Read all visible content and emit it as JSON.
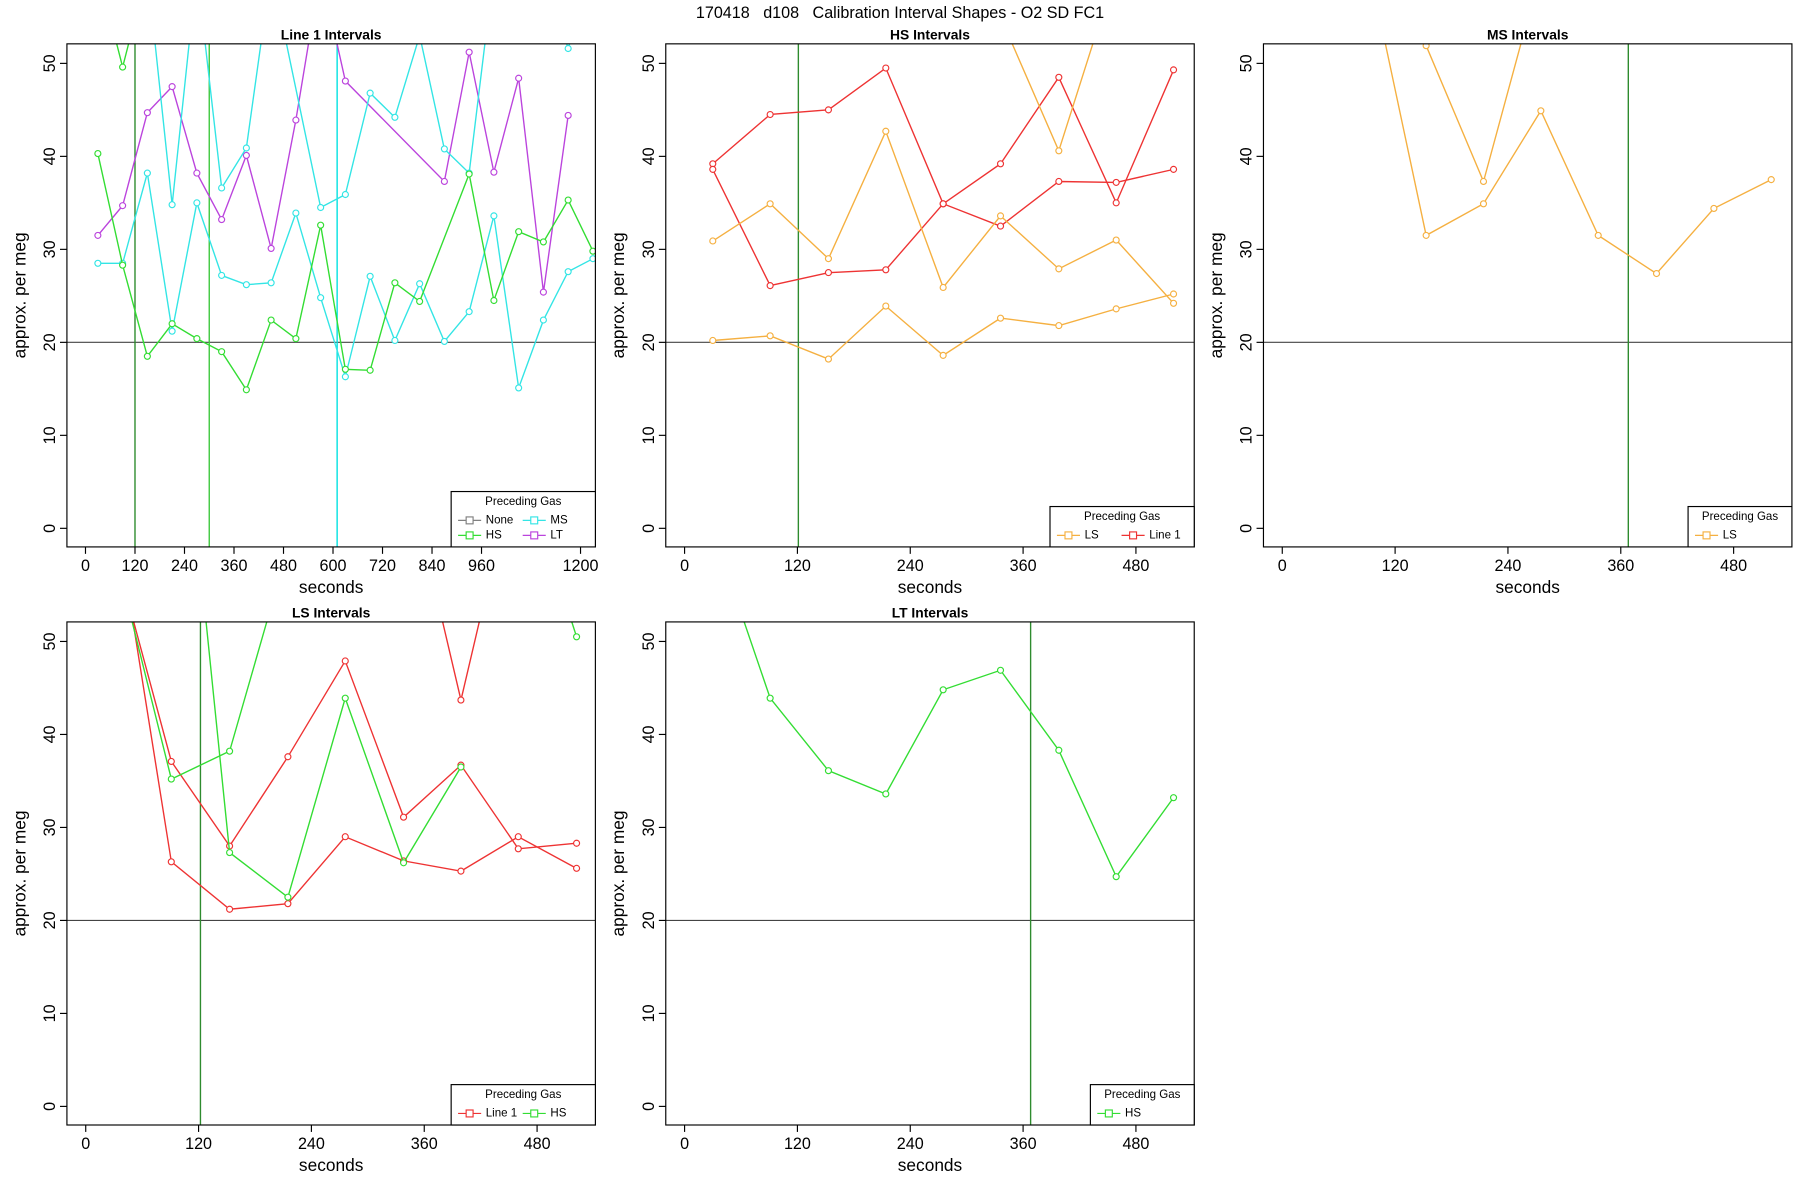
{
  "title": "170418   d108   Calibration Interval Shapes - O2 SD FC1",
  "chart_data": [
    {
      "type": "line",
      "title": "Line 1 Intervals",
      "x_label": "seconds",
      "y_label": "approx. per meg",
      "xlim": [
        -45,
        1236
      ],
      "ylim": [
        -2,
        52.1
      ],
      "xticks": [
        0,
        120,
        240,
        360,
        480,
        600,
        720,
        840,
        960,
        1200
      ],
      "yticks": [
        0,
        10,
        20,
        30,
        40,
        50
      ],
      "hlines": [
        20
      ],
      "vlines": [
        {
          "x": 120,
          "color": "#2e8b2e"
        },
        {
          "x": 300,
          "color": "#3cc83c"
        },
        {
          "x": 610,
          "color": "#00e0e0"
        }
      ],
      "legend": {
        "title": "Preceding Gas",
        "position": "bottomright",
        "columns": 2,
        "entries": [
          {
            "name": "None",
            "color": "#808080"
          },
          {
            "name": "HS",
            "color": "#33dd33"
          },
          {
            "name": "MS",
            "color": "#33e5e5"
          },
          {
            "name": "LT",
            "color": "#bb44dd"
          }
        ]
      },
      "series": [
        {
          "color": "#bb44dd",
          "x": [
            30,
            90,
            150,
            210,
            270,
            330,
            390,
            450,
            510,
            570,
            630,
            870,
            930,
            990,
            1050,
            1110,
            1170
          ],
          "values": [
            31.5,
            34.7,
            44.7,
            47.5,
            38.2,
            33.2,
            40.1,
            30.1,
            43.9,
            60,
            48.1,
            37.3,
            51.2,
            38.3,
            48.4,
            25.4,
            44.4
          ]
        },
        {
          "color": "#33e5e5",
          "x": [
            30,
            90,
            150,
            210,
            270,
            330,
            390,
            450,
            510,
            570,
            630,
            690,
            750,
            810,
            870,
            930,
            990,
            1050,
            1110,
            1170,
            1230
          ],
          "values": [
            28.5,
            28.5,
            38.2,
            21.2,
            35,
            27.2,
            26.2,
            26.4,
            33.9,
            24.8,
            16.3,
            27.1,
            20.2,
            26.3,
            20.1,
            23.3,
            33.6,
            15.1,
            22.4,
            27.6,
            29
          ]
        },
        {
          "color": "#33e5e5",
          "x": [
            150,
            210,
            270,
            330,
            390,
            450,
            570,
            630,
            690,
            750,
            810,
            870,
            930,
            990
          ],
          "values": [
            60,
            34.8,
            60,
            36.6,
            40.9,
            60,
            34.5,
            35.9,
            46.8,
            44.2,
            53,
            40.8,
            38.2,
            60
          ]
        },
        {
          "color": "#33e5e5",
          "x": [
            1110,
            1170,
            1230
          ],
          "values": [
            60,
            51.6,
            60
          ]
        },
        {
          "color": "#33dd33",
          "x": [
            30,
            90,
            150,
            210,
            270,
            330,
            390,
            450,
            510,
            570,
            630,
            690,
            750,
            810,
            930,
            990,
            1050,
            1110,
            1170,
            1230
          ],
          "values": [
            40.3,
            28.3,
            18.5,
            22,
            20.4,
            19,
            14.9,
            22.4,
            20.4,
            32.6,
            17.1,
            17,
            26.4,
            24.4,
            38.1,
            24.5,
            31.9,
            30.8,
            35.3,
            29.8
          ]
        },
        {
          "color": "#33dd33",
          "x": [
            30,
            90,
            150
          ],
          "values": [
            60,
            49.6,
            60
          ]
        }
      ]
    },
    {
      "type": "line",
      "title": "HS Intervals",
      "x_label": "seconds",
      "y_label": "approx. per meg",
      "xlim": [
        -20,
        542
      ],
      "ylim": [
        -2,
        52.1
      ],
      "xticks": [
        0,
        120,
        240,
        360,
        480
      ],
      "yticks": [
        0,
        10,
        20,
        30,
        40,
        50
      ],
      "hlines": [
        20
      ],
      "vlines": [
        {
          "x": 121,
          "color": "#2e8b2e"
        }
      ],
      "legend": {
        "title": "Preceding Gas",
        "position": "bottomright",
        "columns": 2,
        "entries": [
          {
            "name": "LS",
            "color": "#f5b041"
          },
          {
            "name": "Line 1",
            "color": "#ee3333"
          }
        ]
      },
      "series": [
        {
          "color": "#ee3333",
          "x": [
            30,
            91,
            153,
            214,
            275,
            336,
            398,
            459,
            520
          ],
          "values": [
            39.2,
            44.5,
            45,
            49.5,
            34.9,
            39.2,
            48.5,
            35,
            49.3
          ]
        },
        {
          "color": "#ee3333",
          "x": [
            30,
            91,
            153,
            214,
            275,
            336,
            398,
            459,
            520
          ],
          "values": [
            38.6,
            26.1,
            27.5,
            27.8,
            34.9,
            32.5,
            37.3,
            37.2,
            38.6
          ]
        },
        {
          "color": "#f5b041",
          "x": [
            30,
            91,
            153,
            214,
            275,
            336,
            398,
            459,
            520
          ],
          "values": [
            30.9,
            34.9,
            29,
            42.7,
            25.9,
            33.6,
            27.9,
            31,
            24.2
          ]
        },
        {
          "color": "#f5b041",
          "x": [
            30,
            91,
            153,
            214,
            275,
            336,
            398,
            459,
            520
          ],
          "values": [
            20.2,
            20.7,
            18.2,
            23.9,
            18.6,
            22.6,
            21.8,
            23.6,
            25.2
          ]
        },
        {
          "color": "#f5b041",
          "x": [
            336,
            398,
            459
          ],
          "values": [
            55,
            40.6,
            60
          ]
        }
      ]
    },
    {
      "type": "line",
      "title": "MS Intervals",
      "x_label": "seconds",
      "y_label": "approx. per meg",
      "xlim": [
        -20,
        542
      ],
      "ylim": [
        -2,
        52.1
      ],
      "xticks": [
        0,
        120,
        240,
        360,
        480
      ],
      "yticks": [
        0,
        10,
        20,
        30,
        40,
        50
      ],
      "hlines": [
        20
      ],
      "vlines": [
        {
          "x": 368,
          "color": "#2e8b2e"
        }
      ],
      "legend": {
        "title": "Preceding Gas",
        "position": "bottomright",
        "columns": 1,
        "entries": [
          {
            "name": "LS",
            "color": "#f5b041"
          }
        ]
      },
      "series": [
        {
          "color": "#f5b041",
          "x": [
            30,
            153,
            214,
            275,
            336,
            398,
            459,
            520
          ],
          "values": [
            90,
            31.5,
            34.9,
            44.9,
            31.5,
            27.4,
            34.4,
            37.5
          ]
        },
        {
          "color": "#f5b041",
          "x": [
            153,
            214,
            275
          ],
          "values": [
            51.9,
            37.3,
            60
          ]
        }
      ]
    },
    {
      "type": "line",
      "title": "LS Intervals",
      "x_label": "seconds",
      "y_label": "approx. per meg",
      "xlim": [
        -20,
        542
      ],
      "ylim": [
        -2,
        52.1
      ],
      "xticks": [
        0,
        120,
        240,
        360,
        480
      ],
      "yticks": [
        0,
        10,
        20,
        30,
        40,
        50
      ],
      "hlines": [
        20
      ],
      "vlines": [
        {
          "x": 122,
          "color": "#2e8b2e"
        }
      ],
      "legend": {
        "title": "Preceding Gas",
        "position": "bottomright",
        "columns": 2,
        "entries": [
          {
            "name": "Line 1",
            "color": "#ee3333"
          },
          {
            "name": "HS",
            "color": "#33dd33"
          }
        ]
      },
      "series": [
        {
          "color": "#ee3333",
          "x": [
            30,
            91,
            153,
            215,
            276,
            338,
            399,
            460,
            522
          ],
          "values": [
            65,
            26.3,
            21.2,
            21.8,
            29,
            26.4,
            25.3,
            29,
            25.6
          ]
        },
        {
          "color": "#ee3333",
          "x": [
            30,
            91,
            153,
            215,
            276,
            338,
            399,
            460,
            522
          ],
          "values": [
            60,
            37.1,
            28,
            37.6,
            47.9,
            31.1,
            36.7,
            27.7,
            28.3
          ]
        },
        {
          "color": "#ee3333",
          "x": [
            338,
            399,
            460
          ],
          "values": [
            70,
            43.7,
            70
          ]
        },
        {
          "color": "#33dd33",
          "x": [
            30,
            91,
            153,
            215
          ],
          "values": [
            60,
            35.2,
            38.2,
            60
          ]
        },
        {
          "color": "#33dd33",
          "x": [
            120,
            153,
            215,
            276,
            338,
            399
          ],
          "values": [
            60,
            27.3,
            22.5,
            43.9,
            26.2,
            36.5
          ]
        },
        {
          "color": "#33dd33",
          "x": [
            460,
            522
          ],
          "values": [
            70,
            50.5
          ]
        }
      ]
    },
    {
      "type": "line",
      "title": "LT Intervals",
      "x_label": "seconds",
      "y_label": "approx. per meg",
      "xlim": [
        -20,
        542
      ],
      "ylim": [
        -2,
        52.1
      ],
      "xticks": [
        0,
        120,
        240,
        360,
        480
      ],
      "yticks": [
        0,
        10,
        20,
        30,
        40,
        50
      ],
      "hlines": [
        20
      ],
      "vlines": [
        {
          "x": 368,
          "color": "#2e8b2e"
        }
      ],
      "legend": {
        "title": "Preceding Gas",
        "position": "bottomright",
        "columns": 1,
        "entries": [
          {
            "name": "HS",
            "color": "#33dd33"
          }
        ]
      },
      "series": [
        {
          "color": "#33dd33",
          "x": [
            30,
            91,
            153,
            214,
            275,
            336,
            398,
            459,
            520
          ],
          "values": [
            62,
            43.9,
            36.1,
            33.6,
            44.8,
            46.9,
            38.3,
            24.7,
            33.2
          ]
        }
      ]
    }
  ]
}
